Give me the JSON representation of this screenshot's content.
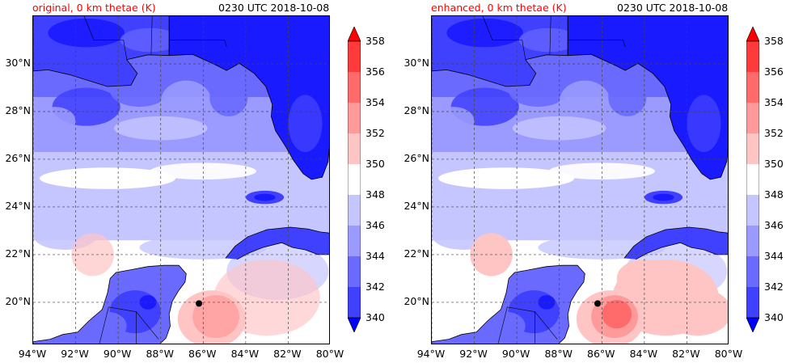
{
  "panels": [
    {
      "id": "original",
      "title_left": "original, 0 km thetae (K)",
      "title_right": "0230 UTC 2018-10-08",
      "variant": "original"
    },
    {
      "id": "enhanced",
      "title_left": "enhanced, 0 km thetae (K)",
      "title_right": "0230 UTC 2018-10-08",
      "variant": "enhanced"
    }
  ],
  "map": {
    "lon_range": [
      -94,
      -80
    ],
    "lat_range": [
      18.2,
      32
    ],
    "lat_ticks": [
      30,
      28,
      26,
      24,
      22,
      20
    ],
    "lat_tick_labels": [
      "30°N",
      "28°N",
      "26°N",
      "24°N",
      "22°N",
      "20°N"
    ],
    "lon_ticks": [
      -94,
      -92,
      -90,
      -88,
      -86,
      -84,
      -82,
      -80
    ],
    "lon_tick_labels": [
      "94°W",
      "92°W",
      "90°W",
      "88°W",
      "86°W",
      "84°W",
      "82°W",
      "80°W"
    ],
    "gridlines": true,
    "marker": {
      "lon": -86.2,
      "lat": 19.95,
      "shape": "filled-circle",
      "color": "#000000"
    }
  },
  "colorbar": {
    "levels": [
      340,
      342,
      344,
      346,
      348,
      350,
      352,
      354,
      356,
      358
    ],
    "labels": [
      "340",
      "342",
      "344",
      "346",
      "348",
      "350",
      "352",
      "354",
      "356",
      "358"
    ],
    "units": "K",
    "colors": [
      "#1a1aff",
      "#4040ff",
      "#6a6aff",
      "#9a9aff",
      "#c5c5ff",
      "#ffffff",
      "#ffc5c5",
      "#ff9a9a",
      "#ff6a6a",
      "#ff3a3a"
    ],
    "extend": "both",
    "under_color": "#0000ff",
    "over_color": "#ff0000"
  }
}
